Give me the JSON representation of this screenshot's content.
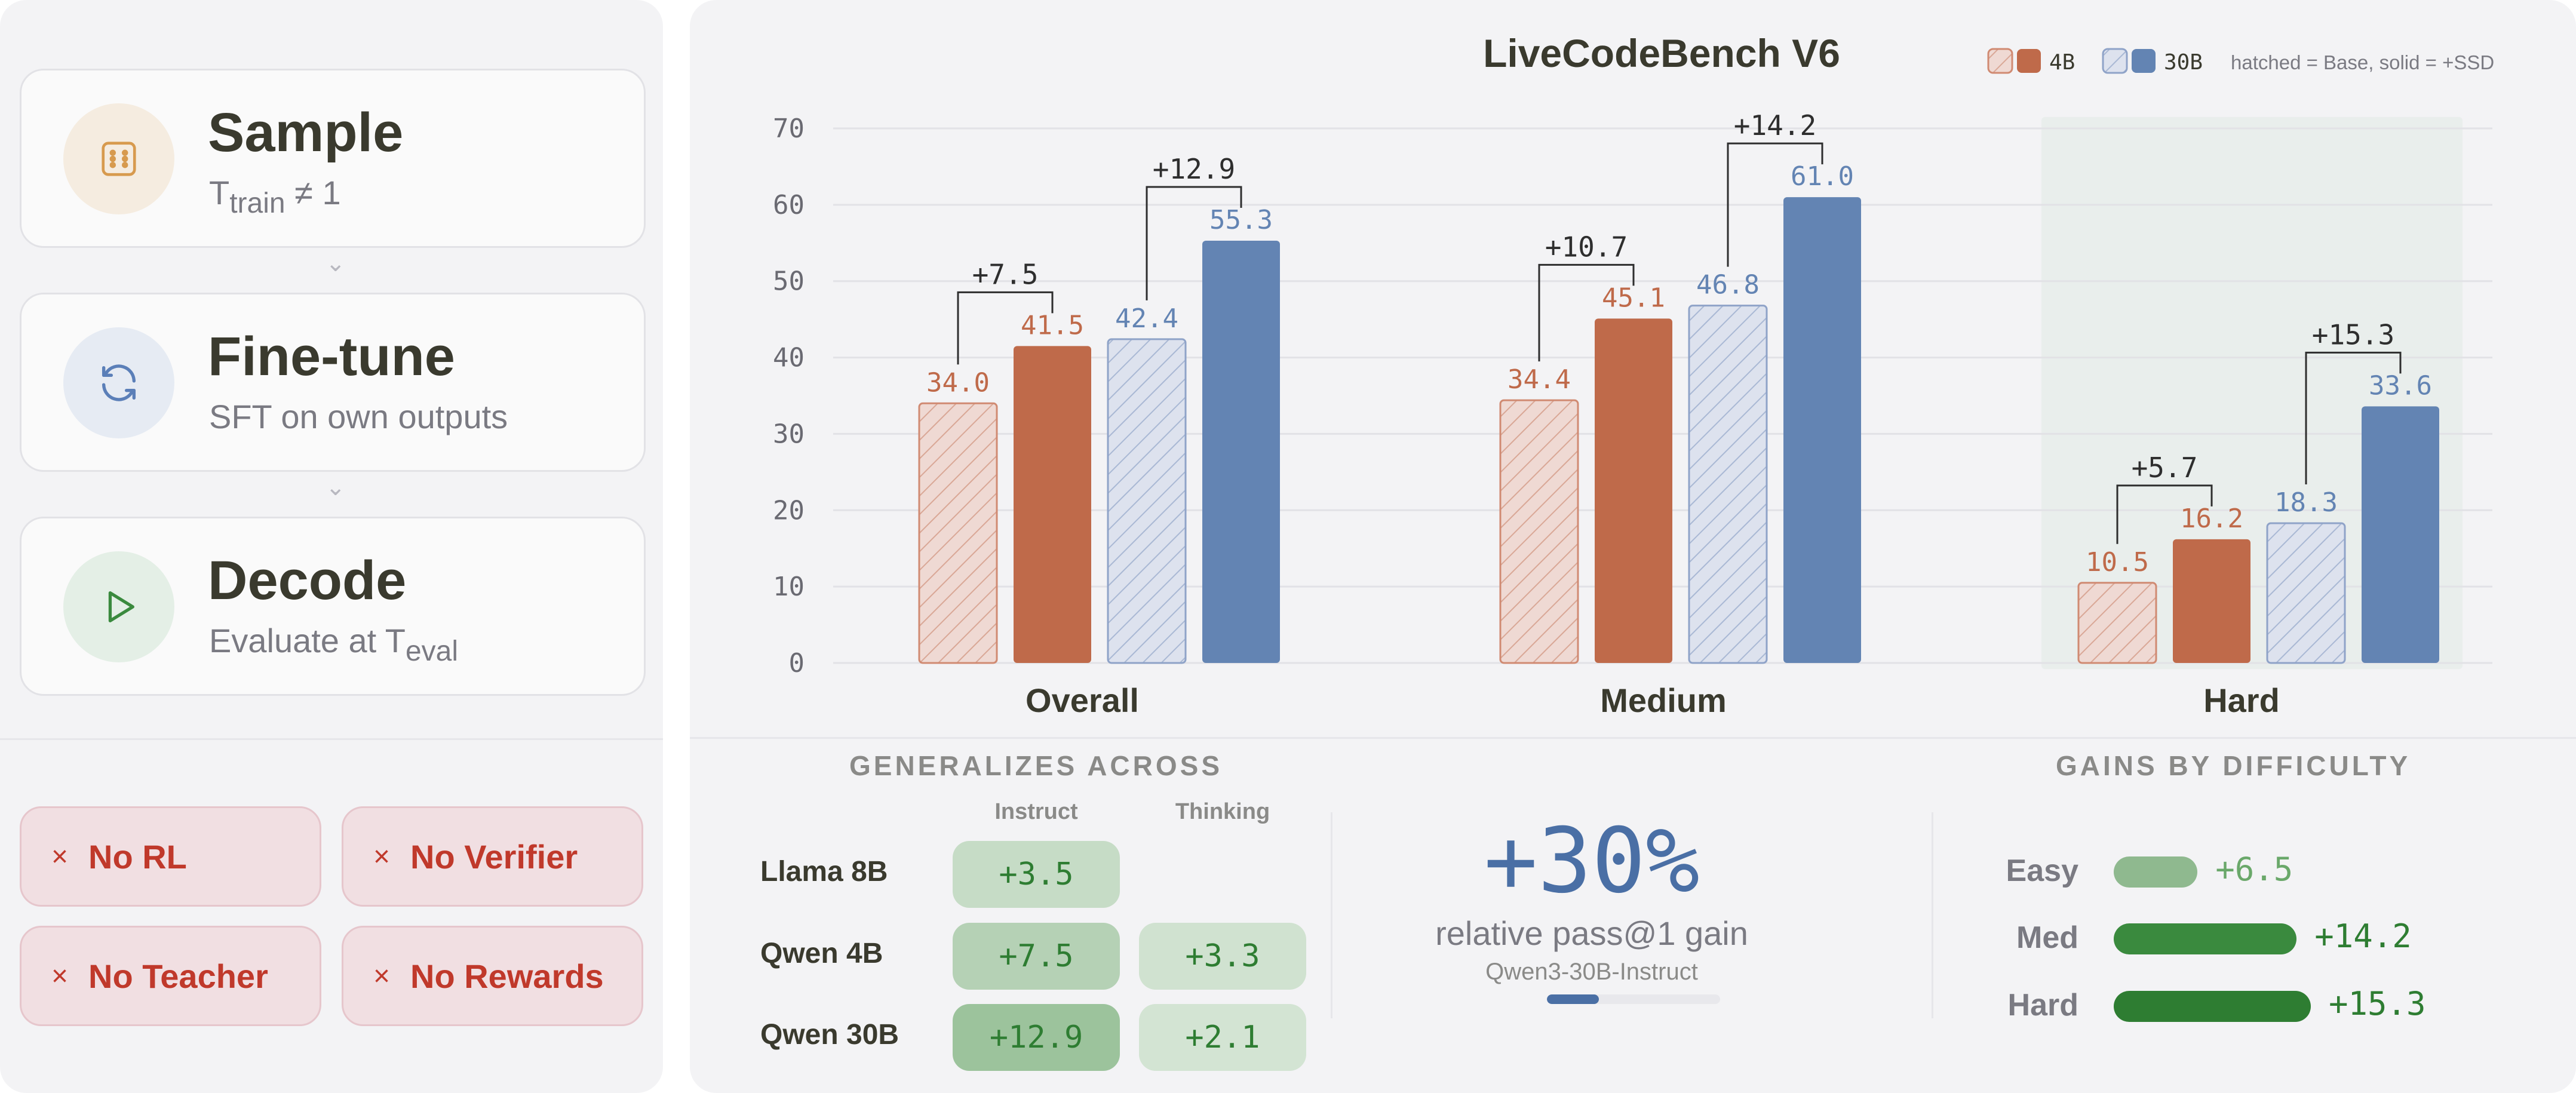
{
  "steps": [
    {
      "title": "Sample",
      "sub_main": "T",
      "sub_script": "train",
      "sub_tail": " ≠ 1",
      "icon": "dice-icon"
    },
    {
      "title": "Fine-tune",
      "sub_main": "SFT on own outputs",
      "sub_script": "",
      "sub_tail": "",
      "icon": "refresh-icon"
    },
    {
      "title": "Decode",
      "sub_main": "Evaluate at T",
      "sub_script": "eval",
      "sub_tail": "",
      "icon": "play-icon"
    }
  ],
  "step_arrow": "⌄",
  "badges": [
    "No RL",
    "No Verifier",
    "No Teacher",
    "No Rewards"
  ],
  "badge_mark": "×",
  "legend": {
    "label_4b": "4B",
    "label_30b": "30B",
    "note": "hatched = Base, solid = +SSD"
  },
  "colors": {
    "orange": "#bf6a4a",
    "blue": "#6384b3",
    "orange_fill_light": "#efd9d3",
    "blue_fill_light": "#dde2ee"
  },
  "chart_data": {
    "type": "bar",
    "title": "LiveCodeBench V6",
    "categories": [
      "Overall",
      "Medium",
      "Hard"
    ],
    "series": [
      {
        "name": "4B Base",
        "style": "hatched",
        "color": "orange",
        "values": [
          34.0,
          34.4,
          10.5
        ]
      },
      {
        "name": "4B +SSD",
        "style": "solid",
        "color": "orange",
        "values": [
          41.5,
          45.1,
          16.2
        ]
      },
      {
        "name": "30B Base",
        "style": "hatched",
        "color": "blue",
        "values": [
          42.4,
          46.8,
          18.3
        ]
      },
      {
        "name": "30B +SSD",
        "style": "solid",
        "color": "blue",
        "values": [
          55.3,
          61.0,
          33.6
        ]
      }
    ],
    "deltas": [
      {
        "category": "Overall",
        "from_series": 0,
        "to_series": 1,
        "label": "+7.5"
      },
      {
        "category": "Overall",
        "from_series": 2,
        "to_series": 3,
        "label": "+12.9"
      },
      {
        "category": "Medium",
        "from_series": 0,
        "to_series": 1,
        "label": "+10.7"
      },
      {
        "category": "Medium",
        "from_series": 2,
        "to_series": 3,
        "label": "+14.2"
      },
      {
        "category": "Hard",
        "from_series": 0,
        "to_series": 1,
        "label": "+5.7"
      },
      {
        "category": "Hard",
        "from_series": 2,
        "to_series": 3,
        "label": "+15.3"
      }
    ],
    "highlighted_category": "Hard",
    "ylim": [
      0,
      70
    ],
    "yticks": [
      0,
      10,
      20,
      30,
      40,
      50,
      60,
      70
    ],
    "grid": true,
    "legend_position": "top-right"
  },
  "generalizes": {
    "title": "GENERALIZES ACROSS",
    "columns": [
      "Instruct",
      "Thinking"
    ],
    "rows": [
      {
        "model": "Llama 8B",
        "instruct": "+3.5",
        "thinking": ""
      },
      {
        "model": "Qwen 4B",
        "instruct": "+7.5",
        "thinking": "+3.3"
      },
      {
        "model": "Qwen 30B",
        "instruct": "+12.9",
        "thinking": "+2.1"
      }
    ]
  },
  "headline": {
    "value": "+30%",
    "label": "relative pass@1 gain",
    "sublabel": "Qwen3-30B-Instruct",
    "progress_fraction": 0.3
  },
  "gains": {
    "title": "GAINS BY DIFFICULTY",
    "max_value": 15.3,
    "items": [
      {
        "label": "Easy",
        "value": 6.5,
        "display": "+6.5",
        "color": "#8fb98f",
        "text_color": "#6aa86a"
      },
      {
        "label": "Med",
        "value": 14.2,
        "display": "+14.2",
        "color": "#3a8a3e",
        "text_color": "#2e7d32"
      },
      {
        "label": "Hard",
        "value": 15.3,
        "display": "+15.3",
        "color": "#2e7d32",
        "text_color": "#2e7d32"
      }
    ]
  }
}
